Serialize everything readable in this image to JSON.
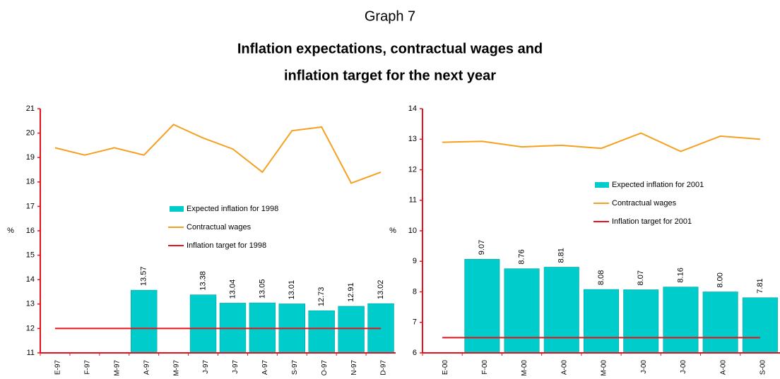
{
  "header": {
    "graph": "Graph 7",
    "title": [
      "Inflation expectations, contractual wages and",
      "inflation target for the next year"
    ]
  },
  "chart_data": [
    {
      "type": "bar",
      "ylabel": "%",
      "categories": [
        "E-97",
        "F-97",
        "M-97",
        "A-97",
        "M-97",
        "J-97",
        "J-97",
        "A-97",
        "S-97",
        "O-97",
        "N-97",
        "D-97"
      ],
      "ylim": [
        11,
        21
      ],
      "yticks": [
        11,
        12,
        13,
        14,
        15,
        16,
        17,
        18,
        19,
        20,
        21
      ],
      "series": [
        {
          "name": "Expected inflation for 1998",
          "type": "bar",
          "color": "#00cccc",
          "values": [
            null,
            null,
            null,
            13.57,
            null,
            13.38,
            13.04,
            13.05,
            13.01,
            12.73,
            12.91,
            13.02
          ]
        },
        {
          "name": "Contractual wages",
          "type": "line",
          "color": "#f5a020",
          "values": [
            19.4,
            19.1,
            19.4,
            19.1,
            20.35,
            19.8,
            19.35,
            18.4,
            20.1,
            20.25,
            17.95,
            18.4
          ]
        },
        {
          "name": "Inflation target for 1998",
          "type": "line",
          "color": "#e8101a",
          "values": [
            12,
            12,
            12,
            12,
            12,
            12,
            12,
            12,
            12,
            12,
            12,
            12
          ]
        }
      ]
    },
    {
      "type": "bar",
      "ylabel": "%",
      "categories": [
        "E-00",
        "F-00",
        "M-00",
        "A-00",
        "M-00",
        "J-00",
        "J-00",
        "A-00",
        "S-00"
      ],
      "ylim": [
        6,
        14
      ],
      "yticks": [
        6,
        7,
        8,
        9,
        10,
        11,
        12,
        13,
        14
      ],
      "series": [
        {
          "name": "Expected inflation for 2001",
          "type": "bar",
          "color": "#00cccc",
          "values": [
            null,
            9.07,
            8.76,
            8.81,
            8.08,
            8.07,
            8.16,
            8.0,
            7.81
          ],
          "value_labels": [
            null,
            "9.07",
            "8.76",
            "8.81",
            "8.08",
            "8.07",
            "8.16",
            "8.00",
            "7.81"
          ]
        },
        {
          "name": "Contractual wages",
          "type": "line",
          "color": "#f5a020",
          "values": [
            12.9,
            12.93,
            12.75,
            12.8,
            12.7,
            13.2,
            12.6,
            13.1,
            13.0
          ]
        },
        {
          "name": "Inflation target for 2001",
          "type": "line",
          "color": "#e8101a",
          "values": [
            6.5,
            6.5,
            6.5,
            6.5,
            6.5,
            6.5,
            6.5,
            6.5,
            6.5
          ]
        }
      ]
    }
  ]
}
